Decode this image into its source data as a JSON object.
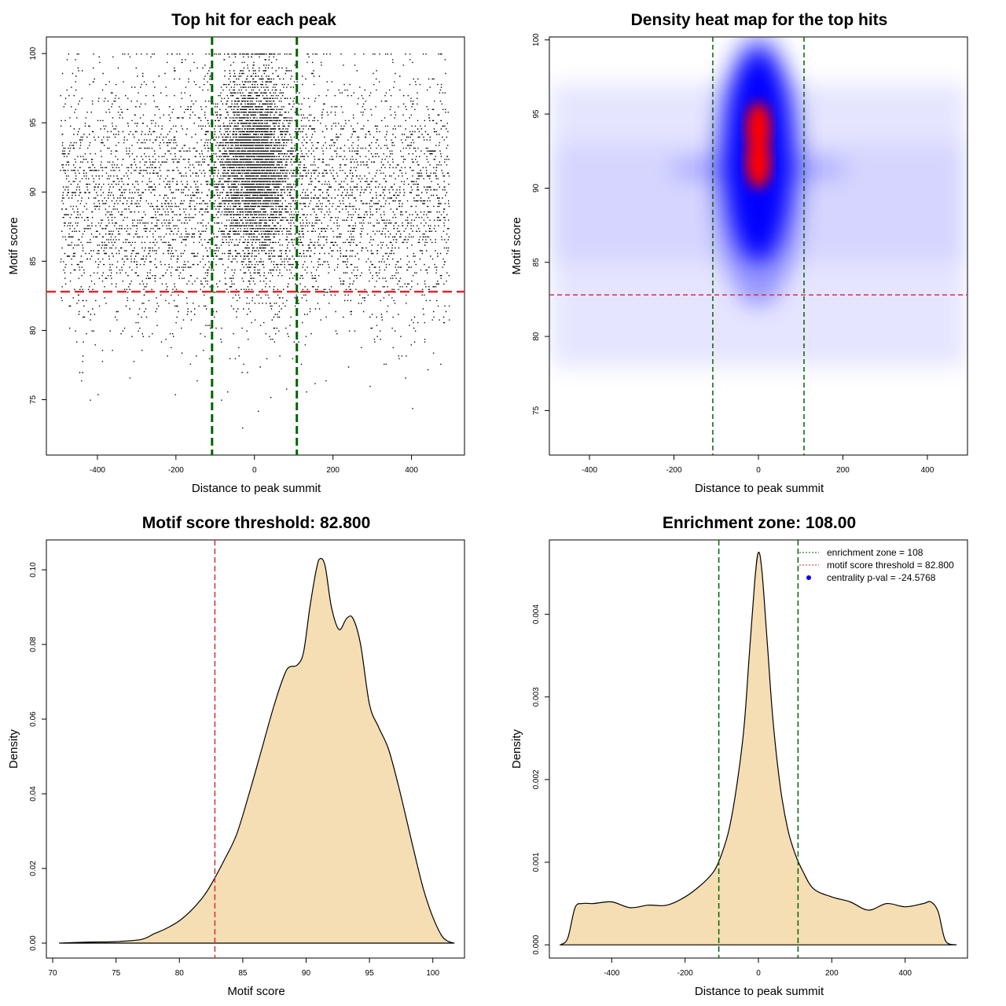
{
  "chart_data": [
    {
      "type": "scatter",
      "title": "Top hit for each peak",
      "xlabel": "Distance to peak summit",
      "ylabel": "Motif score",
      "xlim": [
        -530,
        535
      ],
      "ylim": [
        71,
        101.2
      ],
      "xticks": [
        -400,
        -200,
        0,
        200,
        400
      ],
      "yticks": [
        75,
        80,
        85,
        90,
        95,
        100
      ],
      "point_count_estimate": 9000,
      "point_distribution": {
        "central_fraction": 0.42,
        "central_x_sd": 48,
        "central_y_mean": 92.2,
        "central_y_sd": 3.3,
        "uniform_x_range": [
          -495,
          495
        ],
        "uniform_y_mean": 89.3,
        "uniform_y_sd": 4.6
      },
      "ref_lines": {
        "vertical": [
          -108,
          108
        ],
        "vertical_color": "#006400",
        "horizontal": 82.8,
        "horizontal_color": "#e0252b"
      }
    },
    {
      "type": "heatmap",
      "title": "Density heat map for the top hits",
      "xlabel": "Distance to peak summit",
      "ylabel": "Motif score",
      "xlim": [
        -495,
        495
      ],
      "ylim": [
        72,
        100.2
      ],
      "xticks": [
        -400,
        -200,
        0,
        200,
        400
      ],
      "yticks": [
        75,
        80,
        85,
        90,
        95,
        100
      ],
      "colors": [
        "#ffffff",
        "#0000ff",
        "#ff0000"
      ],
      "density_peaks": [
        {
          "x": 0,
          "y": 94.0,
          "level": "high"
        },
        {
          "x": 0,
          "y": 91.8,
          "level": "high"
        }
      ],
      "ref_lines": {
        "vertical": [
          -108,
          108
        ],
        "vertical_color": "#006400",
        "horizontal": 82.8,
        "horizontal_color": "#d03050"
      }
    },
    {
      "type": "area",
      "title": "Motif score threshold: 82.800",
      "xlabel": "Motif score",
      "ylabel": "Density",
      "xlim": [
        69.5,
        102.5
      ],
      "ylim": [
        -0.004,
        0.108
      ],
      "xticks": [
        70,
        75,
        80,
        85,
        90,
        95,
        100
      ],
      "yticks": [
        "0.00",
        "0.02",
        "0.04",
        "0.06",
        "0.08",
        "0.10"
      ],
      "fill_color": "#f5deb3",
      "x": [
        70.5,
        73,
        75,
        77,
        78,
        79,
        80,
        81,
        82,
        82.8,
        83.5,
        84.5,
        85.5,
        86.5,
        87.5,
        88.3,
        88.7,
        89.3,
        89.8,
        90.3,
        90.8,
        91.1,
        91.5,
        92,
        92.6,
        93.2,
        93.7,
        94.3,
        95,
        95.7,
        96.5,
        97.3,
        98,
        98.7,
        99.3,
        100,
        100.7,
        101.2,
        101.7
      ],
      "density": [
        0,
        0.0003,
        0.0004,
        0.001,
        0.0025,
        0.004,
        0.006,
        0.009,
        0.013,
        0.0175,
        0.022,
        0.029,
        0.04,
        0.052,
        0.064,
        0.072,
        0.074,
        0.0745,
        0.078,
        0.09,
        0.1,
        0.103,
        0.101,
        0.09,
        0.084,
        0.087,
        0.087,
        0.08,
        0.064,
        0.058,
        0.052,
        0.042,
        0.032,
        0.022,
        0.014,
        0.007,
        0.002,
        0.0005,
        0
      ],
      "ref_lines": {
        "vertical": [
          82.8
        ],
        "vertical_color": "#d03030"
      }
    },
    {
      "type": "area",
      "title": "Enrichment zone: 108.00",
      "xlabel": "Distance to peak summit",
      "ylabel": "Density",
      "xlim": [
        -570,
        570
      ],
      "ylim": [
        -0.00016,
        0.0049
      ],
      "xticks": [
        -400,
        -200,
        0,
        200,
        400
      ],
      "yticks": [
        "0.000",
        "0.001",
        "0.002",
        "0.003",
        "0.004"
      ],
      "fill_color": "#f5deb3",
      "x": [
        -540,
        -520,
        -500,
        -480,
        -450,
        -400,
        -350,
        -300,
        -250,
        -200,
        -150,
        -120,
        -100,
        -80,
        -60,
        -40,
        -25,
        -10,
        0,
        10,
        25,
        40,
        60,
        80,
        100,
        120,
        150,
        200,
        250,
        300,
        350,
        400,
        450,
        470,
        490,
        510,
        540
      ],
      "density": [
        0,
        8e-05,
        0.00045,
        0.0005,
        0.0005,
        0.00052,
        0.00045,
        0.00048,
        0.00048,
        0.00058,
        0.00075,
        0.0009,
        0.0011,
        0.0014,
        0.0019,
        0.0026,
        0.0035,
        0.0044,
        0.00475,
        0.0045,
        0.0036,
        0.0027,
        0.0019,
        0.0014,
        0.0011,
        0.0009,
        0.00068,
        0.00058,
        0.00052,
        0.00042,
        0.0005,
        0.00046,
        0.0005,
        0.00052,
        0.0004,
        5e-05,
        0
      ],
      "ref_lines": {
        "vertical": [
          -108,
          108
        ],
        "vertical_color": "#006400"
      },
      "legend": {
        "position": "top-right",
        "entries": [
          {
            "label": "enrichment zone = 108",
            "color": "#006400",
            "style": "dotted-line"
          },
          {
            "label": "motif score threshold = 82.800",
            "color": "#e0252b",
            "style": "dotted-line"
          },
          {
            "label": "centrality p-val = -24.5768",
            "color": "#0000ff",
            "style": "point"
          }
        ]
      }
    }
  ]
}
